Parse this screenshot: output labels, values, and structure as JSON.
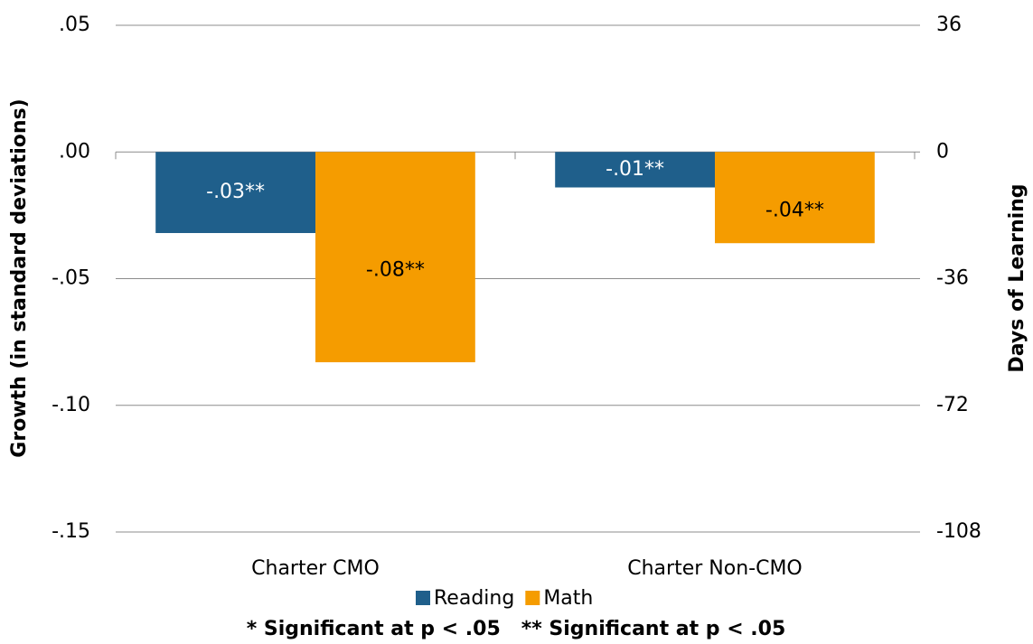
{
  "chart_data": {
    "type": "bar",
    "categories": [
      "Charter CMO",
      "Charter Non-CMO"
    ],
    "series": [
      {
        "name": "Reading",
        "color": "#1f5f8b",
        "values": [
          -0.032,
          -0.014
        ],
        "value_labels": [
          "-.03**",
          "-.01**"
        ]
      },
      {
        "name": "Math",
        "color": "#f59c00",
        "values": [
          -0.083,
          -0.036
        ],
        "value_labels": [
          "-.08**",
          "-.04**"
        ]
      }
    ],
    "y_label": "Growth (in standard deviations)",
    "y2_label": "Days of Learning",
    "ylim": [
      -0.15,
      0.05
    ],
    "yticks": [
      {
        "value": 0.05,
        "label": ".05"
      },
      {
        "value": 0,
        "label": ".00"
      },
      {
        "value": -0.05,
        "label": "-.05"
      },
      {
        "value": -0.1,
        "label": "-.10"
      },
      {
        "value": -0.15,
        "label": "-.15"
      }
    ],
    "y2lim": [
      -108,
      36
    ],
    "y2ticks": [
      36,
      0,
      -36,
      -72,
      -108
    ],
    "grid": true,
    "note": "* Significant at p < .05   ** Significant at p < .05"
  }
}
